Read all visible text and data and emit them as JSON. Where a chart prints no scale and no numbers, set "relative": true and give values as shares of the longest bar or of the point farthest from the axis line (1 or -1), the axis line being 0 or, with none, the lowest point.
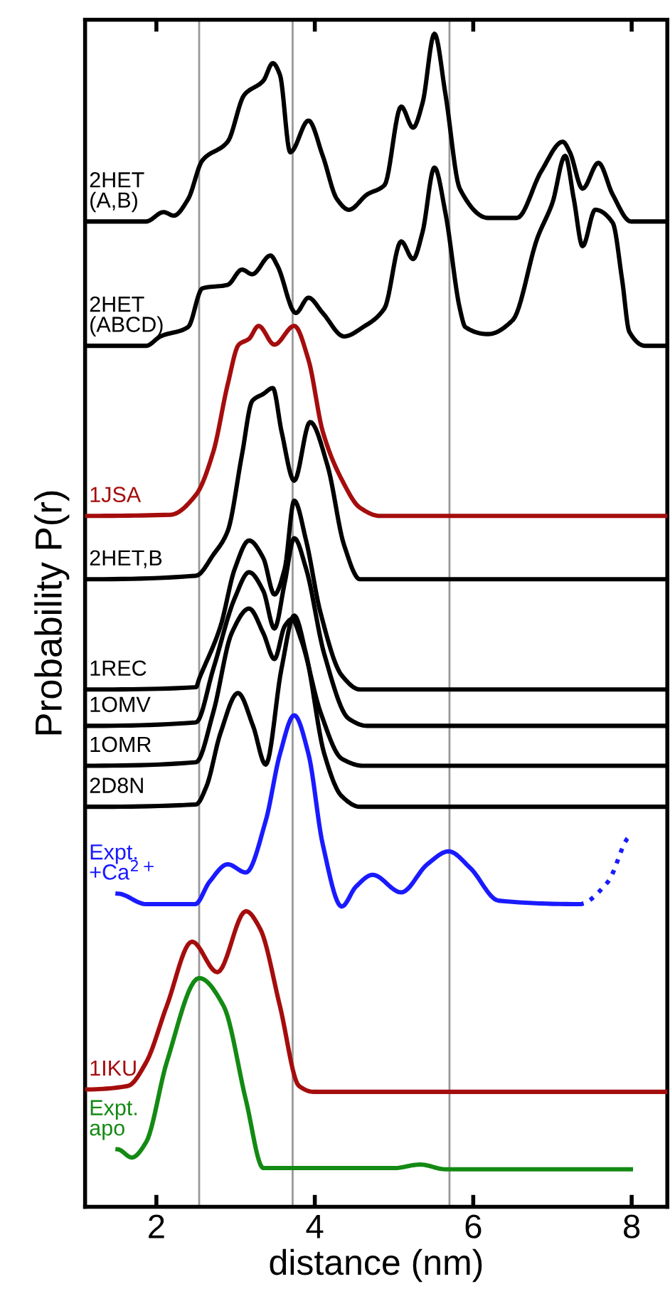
{
  "chart_data": {
    "type": "line",
    "relative": true,
    "xlabel": "distance (nm)",
    "ylabel": "Probability P(r)",
    "xlim": [
      1.1,
      8.45
    ],
    "xticks": [
      2,
      4,
      6,
      8
    ],
    "tick_labels": "x",
    "grid": false,
    "legend": false,
    "marker": "none",
    "line_style": "solid",
    "ref_lines": [
      {
        "axis": "x",
        "value": 2.54,
        "color": "#999999"
      },
      {
        "axis": "x",
        "value": 3.72,
        "color": "#999999"
      },
      {
        "axis": "x",
        "value": 5.7,
        "color": "#999999"
      }
    ],
    "series": [
      {
        "name": "2HET\n(A,B)",
        "color": "#000000",
        "x": [
          1.1,
          1.87,
          2.09,
          2.22,
          2.4,
          2.58,
          2.9,
          3.11,
          3.35,
          3.47,
          3.56,
          3.69,
          3.92,
          4.1,
          4.28,
          4.43,
          4.66,
          4.88,
          5.09,
          5.24,
          5.36,
          5.51,
          5.65,
          5.83,
          6.19,
          6.55,
          6.86,
          7.13,
          7.22,
          7.38,
          7.58,
          7.76,
          7.99,
          8.44
        ],
        "values": [
          0.84,
          0.84,
          0.848,
          0.845,
          0.859,
          0.892,
          0.908,
          0.948,
          0.96,
          0.975,
          0.965,
          0.899,
          0.926,
          0.896,
          0.859,
          0.85,
          0.863,
          0.871,
          0.938,
          0.92,
          0.941,
          1.0,
          0.948,
          0.868,
          0.843,
          0.843,
          0.883,
          0.908,
          0.899,
          0.868,
          0.89,
          0.863,
          0.84,
          0.84
        ]
      },
      {
        "name": "2HET\n(ABCD)",
        "color": "#000000",
        "x": [
          1.1,
          1.87,
          2.05,
          2.4,
          2.58,
          2.9,
          3.08,
          3.21,
          3.44,
          3.53,
          3.76,
          3.92,
          4.1,
          4.37,
          4.61,
          4.88,
          5.09,
          5.24,
          5.36,
          5.51,
          5.65,
          5.83,
          5.9,
          6.19,
          6.5,
          6.81,
          7.0,
          7.16,
          7.27,
          7.38,
          7.54,
          7.76,
          7.88,
          7.97,
          8.17,
          8.44
        ],
        "values": [
          0.734,
          0.734,
          0.742,
          0.75,
          0.783,
          0.786,
          0.799,
          0.795,
          0.811,
          0.802,
          0.762,
          0.775,
          0.762,
          0.742,
          0.75,
          0.766,
          0.823,
          0.808,
          0.831,
          0.886,
          0.847,
          0.766,
          0.75,
          0.744,
          0.756,
          0.826,
          0.856,
          0.896,
          0.859,
          0.819,
          0.85,
          0.839,
          0.79,
          0.746,
          0.734,
          0.734
        ]
      },
      {
        "name": "1JSA",
        "color": "#a50d0d",
        "x": [
          1.1,
          2.18,
          2.5,
          2.72,
          2.9,
          3.04,
          3.17,
          3.29,
          3.49,
          3.74,
          3.92,
          4.1,
          4.34,
          4.57,
          4.82,
          8.44
        ],
        "values": [
          0.589,
          0.59,
          0.607,
          0.644,
          0.701,
          0.735,
          0.74,
          0.751,
          0.735,
          0.751,
          0.722,
          0.661,
          0.62,
          0.596,
          0.589,
          0.589
        ]
      },
      {
        "name": "2HET,B",
        "color": "#000000",
        "x": [
          1.1,
          2.5,
          2.72,
          2.9,
          3.08,
          3.21,
          3.35,
          3.47,
          3.58,
          3.74,
          3.94,
          4.16,
          4.37,
          4.57,
          8.44
        ],
        "values": [
          0.535,
          0.538,
          0.556,
          0.576,
          0.641,
          0.687,
          0.693,
          0.698,
          0.661,
          0.619,
          0.669,
          0.632,
          0.564,
          0.535,
          0.535
        ]
      },
      {
        "name": "1REC",
        "color": "#000000",
        "x": [
          1.1,
          2.5,
          2.54,
          2.81,
          2.99,
          3.17,
          3.35,
          3.49,
          3.62,
          3.74,
          3.89,
          4.07,
          4.34,
          4.57,
          8.44
        ],
        "values": [
          0.441,
          0.443,
          0.45,
          0.495,
          0.544,
          0.568,
          0.553,
          0.522,
          0.544,
          0.602,
          0.568,
          0.507,
          0.453,
          0.441,
          0.441
        ]
      },
      {
        "name": "1OMV",
        "color": "#000000",
        "x": [
          1.1,
          2.5,
          2.72,
          2.99,
          3.17,
          3.35,
          3.49,
          3.62,
          3.74,
          3.89,
          4.12,
          4.43,
          4.66,
          8.44
        ],
        "values": [
          0.41,
          0.413,
          0.459,
          0.519,
          0.541,
          0.525,
          0.493,
          0.532,
          0.57,
          0.544,
          0.471,
          0.416,
          0.41,
          0.41
        ]
      },
      {
        "name": "1OMR",
        "color": "#000000",
        "x": [
          1.1,
          2.5,
          2.72,
          2.95,
          3.17,
          3.35,
          3.49,
          3.62,
          3.71,
          3.83,
          4.07,
          4.34,
          4.61,
          8.44
        ],
        "values": [
          0.376,
          0.379,
          0.422,
          0.489,
          0.51,
          0.489,
          0.467,
          0.495,
          0.501,
          0.483,
          0.422,
          0.382,
          0.376,
          0.376
        ]
      },
      {
        "name": "2D8N",
        "color": "#000000",
        "x": [
          1.1,
          2.5,
          2.63,
          2.81,
          3.03,
          3.22,
          3.38,
          3.58,
          3.74,
          3.89,
          4.12,
          4.34,
          4.57,
          8.44
        ],
        "values": [
          0.341,
          0.343,
          0.358,
          0.404,
          0.438,
          0.41,
          0.377,
          0.459,
          0.504,
          0.471,
          0.386,
          0.35,
          0.341,
          0.341
        ]
      },
      {
        "name": "Expt.\n+Ca$^{2+}$",
        "color": "#1a1aff",
        "x": [
          1.51,
          1.87,
          2.49,
          2.67,
          2.9,
          3.13,
          3.38,
          3.56,
          3.74,
          3.92,
          4.1,
          4.34,
          4.52,
          4.73,
          5.09,
          5.42,
          5.69,
          5.96,
          6.32,
          7.34
        ],
        "values": [
          0.267,
          0.258,
          0.258,
          0.277,
          0.292,
          0.285,
          0.329,
          0.386,
          0.419,
          0.386,
          0.309,
          0.256,
          0.273,
          0.283,
          0.268,
          0.292,
          0.303,
          0.289,
          0.261,
          0.258
        ]
      },
      {
        "color": "#1a1aff",
        "line_style": "dotted",
        "x": [
          7.34,
          7.7,
          7.99
        ],
        "values": [
          0.258,
          0.277,
          0.316
        ]
      },
      {
        "name": "1IKU",
        "color": "#a50d0d",
        "x": [
          1.1,
          1.64,
          1.87,
          2.13,
          2.45,
          2.77,
          3.13,
          3.31,
          3.56,
          3.8,
          3.98,
          8.44
        ],
        "values": [
          0.1,
          0.103,
          0.123,
          0.171,
          0.226,
          0.2,
          0.252,
          0.237,
          0.171,
          0.103,
          0.098,
          0.098
        ]
      },
      {
        "name": "Expt.\napo",
        "color": "#138a13",
        "x": [
          1.51,
          1.69,
          1.87,
          2.13,
          2.54,
          2.85,
          3.13,
          3.35,
          5.0,
          5.33,
          5.65,
          7.99
        ],
        "values": [
          0.049,
          0.042,
          0.055,
          0.123,
          0.195,
          0.171,
          0.091,
          0.033,
          0.033,
          0.036,
          0.032,
          0.032
        ]
      }
    ]
  }
}
